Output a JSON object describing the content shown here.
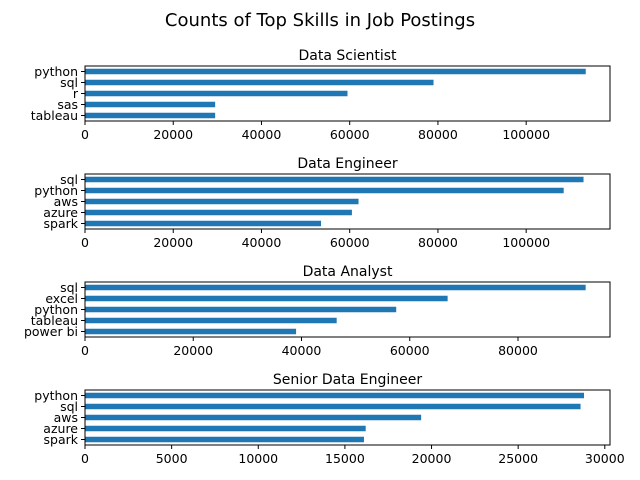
{
  "figure_title": "Counts of Top Skills in Job Postings",
  "colors": {
    "bar": "#1f77b4",
    "axis": "#000000",
    "background": "#ffffff"
  },
  "chart_data": [
    {
      "type": "bar",
      "orientation": "horizontal",
      "title": "Data Scientist",
      "categories": [
        "python",
        "sql",
        "r",
        "sas",
        "tableau"
      ],
      "values": [
        113500,
        79000,
        59500,
        29500,
        29500
      ],
      "xlim": [
        0,
        119000
      ],
      "xticks": [
        0,
        20000,
        40000,
        60000,
        80000,
        100000
      ],
      "xlabel": "",
      "ylabel": "",
      "grid": false
    },
    {
      "type": "bar",
      "orientation": "horizontal",
      "title": "Data Engineer",
      "categories": [
        "sql",
        "python",
        "aws",
        "azure",
        "spark"
      ],
      "values": [
        113000,
        108500,
        62000,
        60500,
        53500
      ],
      "xlim": [
        0,
        119000
      ],
      "xticks": [
        0,
        20000,
        40000,
        60000,
        80000,
        100000
      ],
      "xlabel": "",
      "ylabel": "",
      "grid": false
    },
    {
      "type": "bar",
      "orientation": "horizontal",
      "title": "Data Analyst",
      "categories": [
        "sql",
        "excel",
        "python",
        "tableau",
        "power bi"
      ],
      "values": [
        92500,
        67000,
        57500,
        46500,
        39000
      ],
      "xlim": [
        0,
        97000
      ],
      "xticks": [
        0,
        20000,
        40000,
        60000,
        80000
      ],
      "xlabel": "",
      "ylabel": "",
      "grid": false
    },
    {
      "type": "bar",
      "orientation": "horizontal",
      "title": "Senior Data Engineer",
      "categories": [
        "python",
        "sql",
        "aws",
        "azure",
        "spark"
      ],
      "values": [
        28800,
        28600,
        19400,
        16200,
        16100
      ],
      "xlim": [
        0,
        30300
      ],
      "xticks": [
        0,
        5000,
        10000,
        15000,
        20000,
        25000,
        30000
      ],
      "xlabel": "",
      "ylabel": "",
      "grid": false
    }
  ]
}
